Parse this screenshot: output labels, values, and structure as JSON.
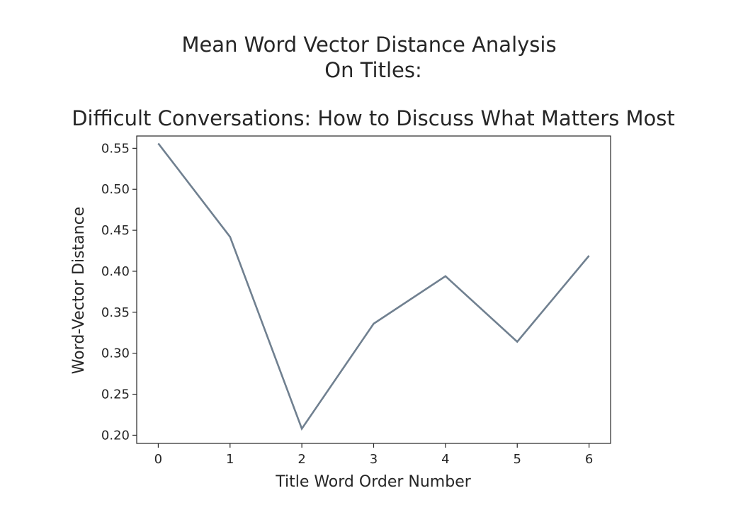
{
  "chart_data": {
    "type": "line",
    "title": "Mean Word Vector Distance Analysis\nOn Titles:\n\nDifficult Conversations: How to Discuss What Matters Most",
    "title_lines": [
      "Mean Word Vector Distance Analysis",
      "On Titles:",
      "",
      "Difficult Conversations: How to Discuss What Matters Most"
    ],
    "xlabel": "Title Word Order Number",
    "ylabel": "Word-Vector Distance",
    "x": [
      0,
      1,
      2,
      3,
      4,
      5,
      6
    ],
    "series": [
      {
        "values": [
          0.556,
          0.442,
          0.208,
          0.336,
          0.394,
          0.314,
          0.419
        ],
        "color": "#708090"
      }
    ],
    "xlim": [
      -0.3,
      6.3
    ],
    "ylim": [
      0.19,
      0.565
    ],
    "xticks": [
      "0",
      "1",
      "2",
      "3",
      "4",
      "5",
      "6"
    ],
    "yticks": [
      "0.20",
      "0.25",
      "0.30",
      "0.35",
      "0.40",
      "0.45",
      "0.50",
      "0.55"
    ],
    "grid": false
  }
}
